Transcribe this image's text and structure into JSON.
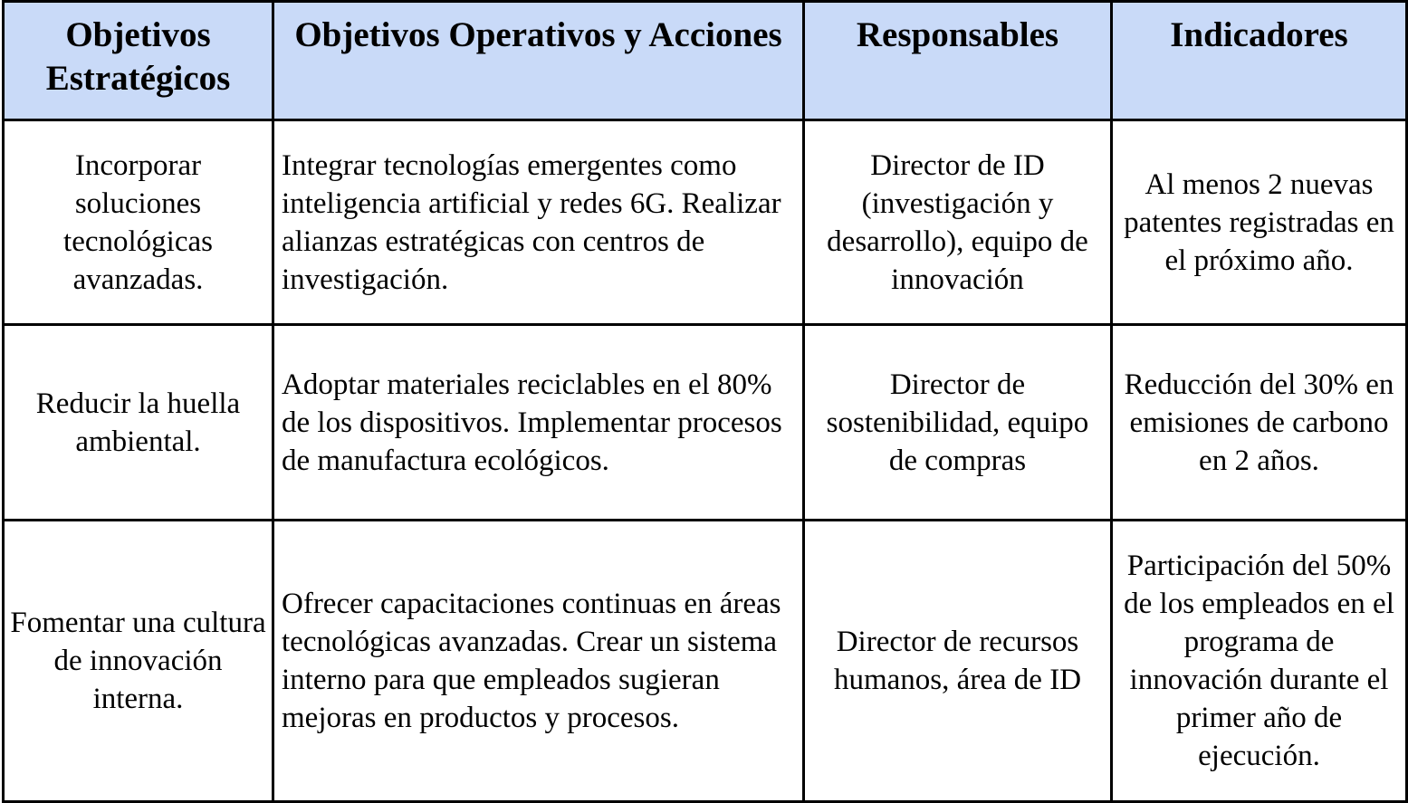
{
  "table": {
    "headers": [
      "Objetivos Estratégicos",
      "Objetivos Operativos y Acciones",
      "Responsables",
      "Indicadores"
    ],
    "rows": [
      {
        "strategic": "Incorporar soluciones tecnológicas avanzadas.",
        "operational": "Integrar tecnologías emergentes como inteligencia artificial y redes 6G. Realizar alianzas estratégicas con centros de investigación.",
        "responsible": "Director de ID (investigación y desarrollo), equipo de innovación",
        "indicator": "Al menos 2 nuevas patentes registradas en el próximo año."
      },
      {
        "strategic": "Reducir la huella ambiental.",
        "operational": "Adoptar materiales reciclables en el 80% de los dispositivos. Implementar procesos de manufactura ecológicos.",
        "responsible": "Director de sostenibilidad, equipo de compras",
        "indicator": "Reducción del 30% en emisiones de carbono en 2 años."
      },
      {
        "strategic": "Fomentar una cultura de innovación interna.",
        "operational": "Ofrecer capacitaciones continuas en áreas tecnológicas avanzadas. Crear un sistema interno para que empleados sugieran mejoras en productos y procesos.",
        "responsible": "Director de recursos humanos, área de ID",
        "indicator": "Participación del 50% de los empleados en el programa de innovación durante el primer año de ejecución."
      }
    ]
  },
  "colors": {
    "header_background": "#c9daf8",
    "border": "#000000",
    "text": "#000000"
  }
}
